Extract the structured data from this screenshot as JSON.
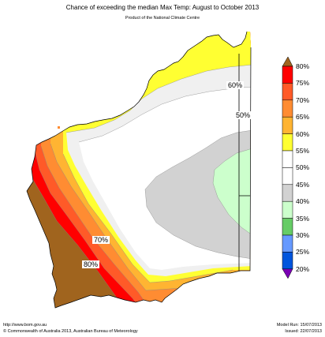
{
  "header": {
    "title": "Chance of exceeding the median Max Temp: August to October 2013",
    "subtitle": "Product of the National Climate Centre"
  },
  "map_labels": [
    "80%",
    "70%",
    "60%",
    "50%"
  ],
  "legend": {
    "items": [
      {
        "label": "80%",
        "color": "#ff0000"
      },
      {
        "label": "75%",
        "color": "#ff5a28"
      },
      {
        "label": "70%",
        "color": "#ff8c32"
      },
      {
        "label": "65%",
        "color": "#ffb432"
      },
      {
        "label": "60%",
        "color": "#ffff32"
      },
      {
        "label": "55%",
        "color": "#ffffff"
      },
      {
        "label": "50%",
        "color": "#ffffff"
      },
      {
        "label": "45%",
        "color": "#d2d2d2"
      },
      {
        "label": "40%",
        "color": "#ccffcc"
      },
      {
        "label": "35%",
        "color": "#66cc66"
      },
      {
        "label": "30%",
        "color": "#6699ff"
      },
      {
        "label": "25%",
        "color": "#0055dd"
      },
      {
        "label": "20%",
        "color": "#7a00b4"
      }
    ],
    "top_arrow_color": "#a0641e"
  },
  "colors": {
    "brown": "#a0641e",
    "red": "#ff0000",
    "orange_red": "#ff5a28",
    "orange": "#ff8c32",
    "light_orange": "#ffb432",
    "yellow": "#ffff32",
    "light_gray": "#f0f0f0",
    "white": "#ffffff",
    "gray": "#d2d2d2",
    "light_green": "#ccffcc"
  },
  "footer": {
    "url": "http://www.bom.gov.au",
    "copyright": "©  Commonwealth of Australia 2013, Australian Bureau of Meteorology",
    "model_run": "Model Run: 15/07/2013",
    "issued": "Issued: 22/07/2013"
  }
}
